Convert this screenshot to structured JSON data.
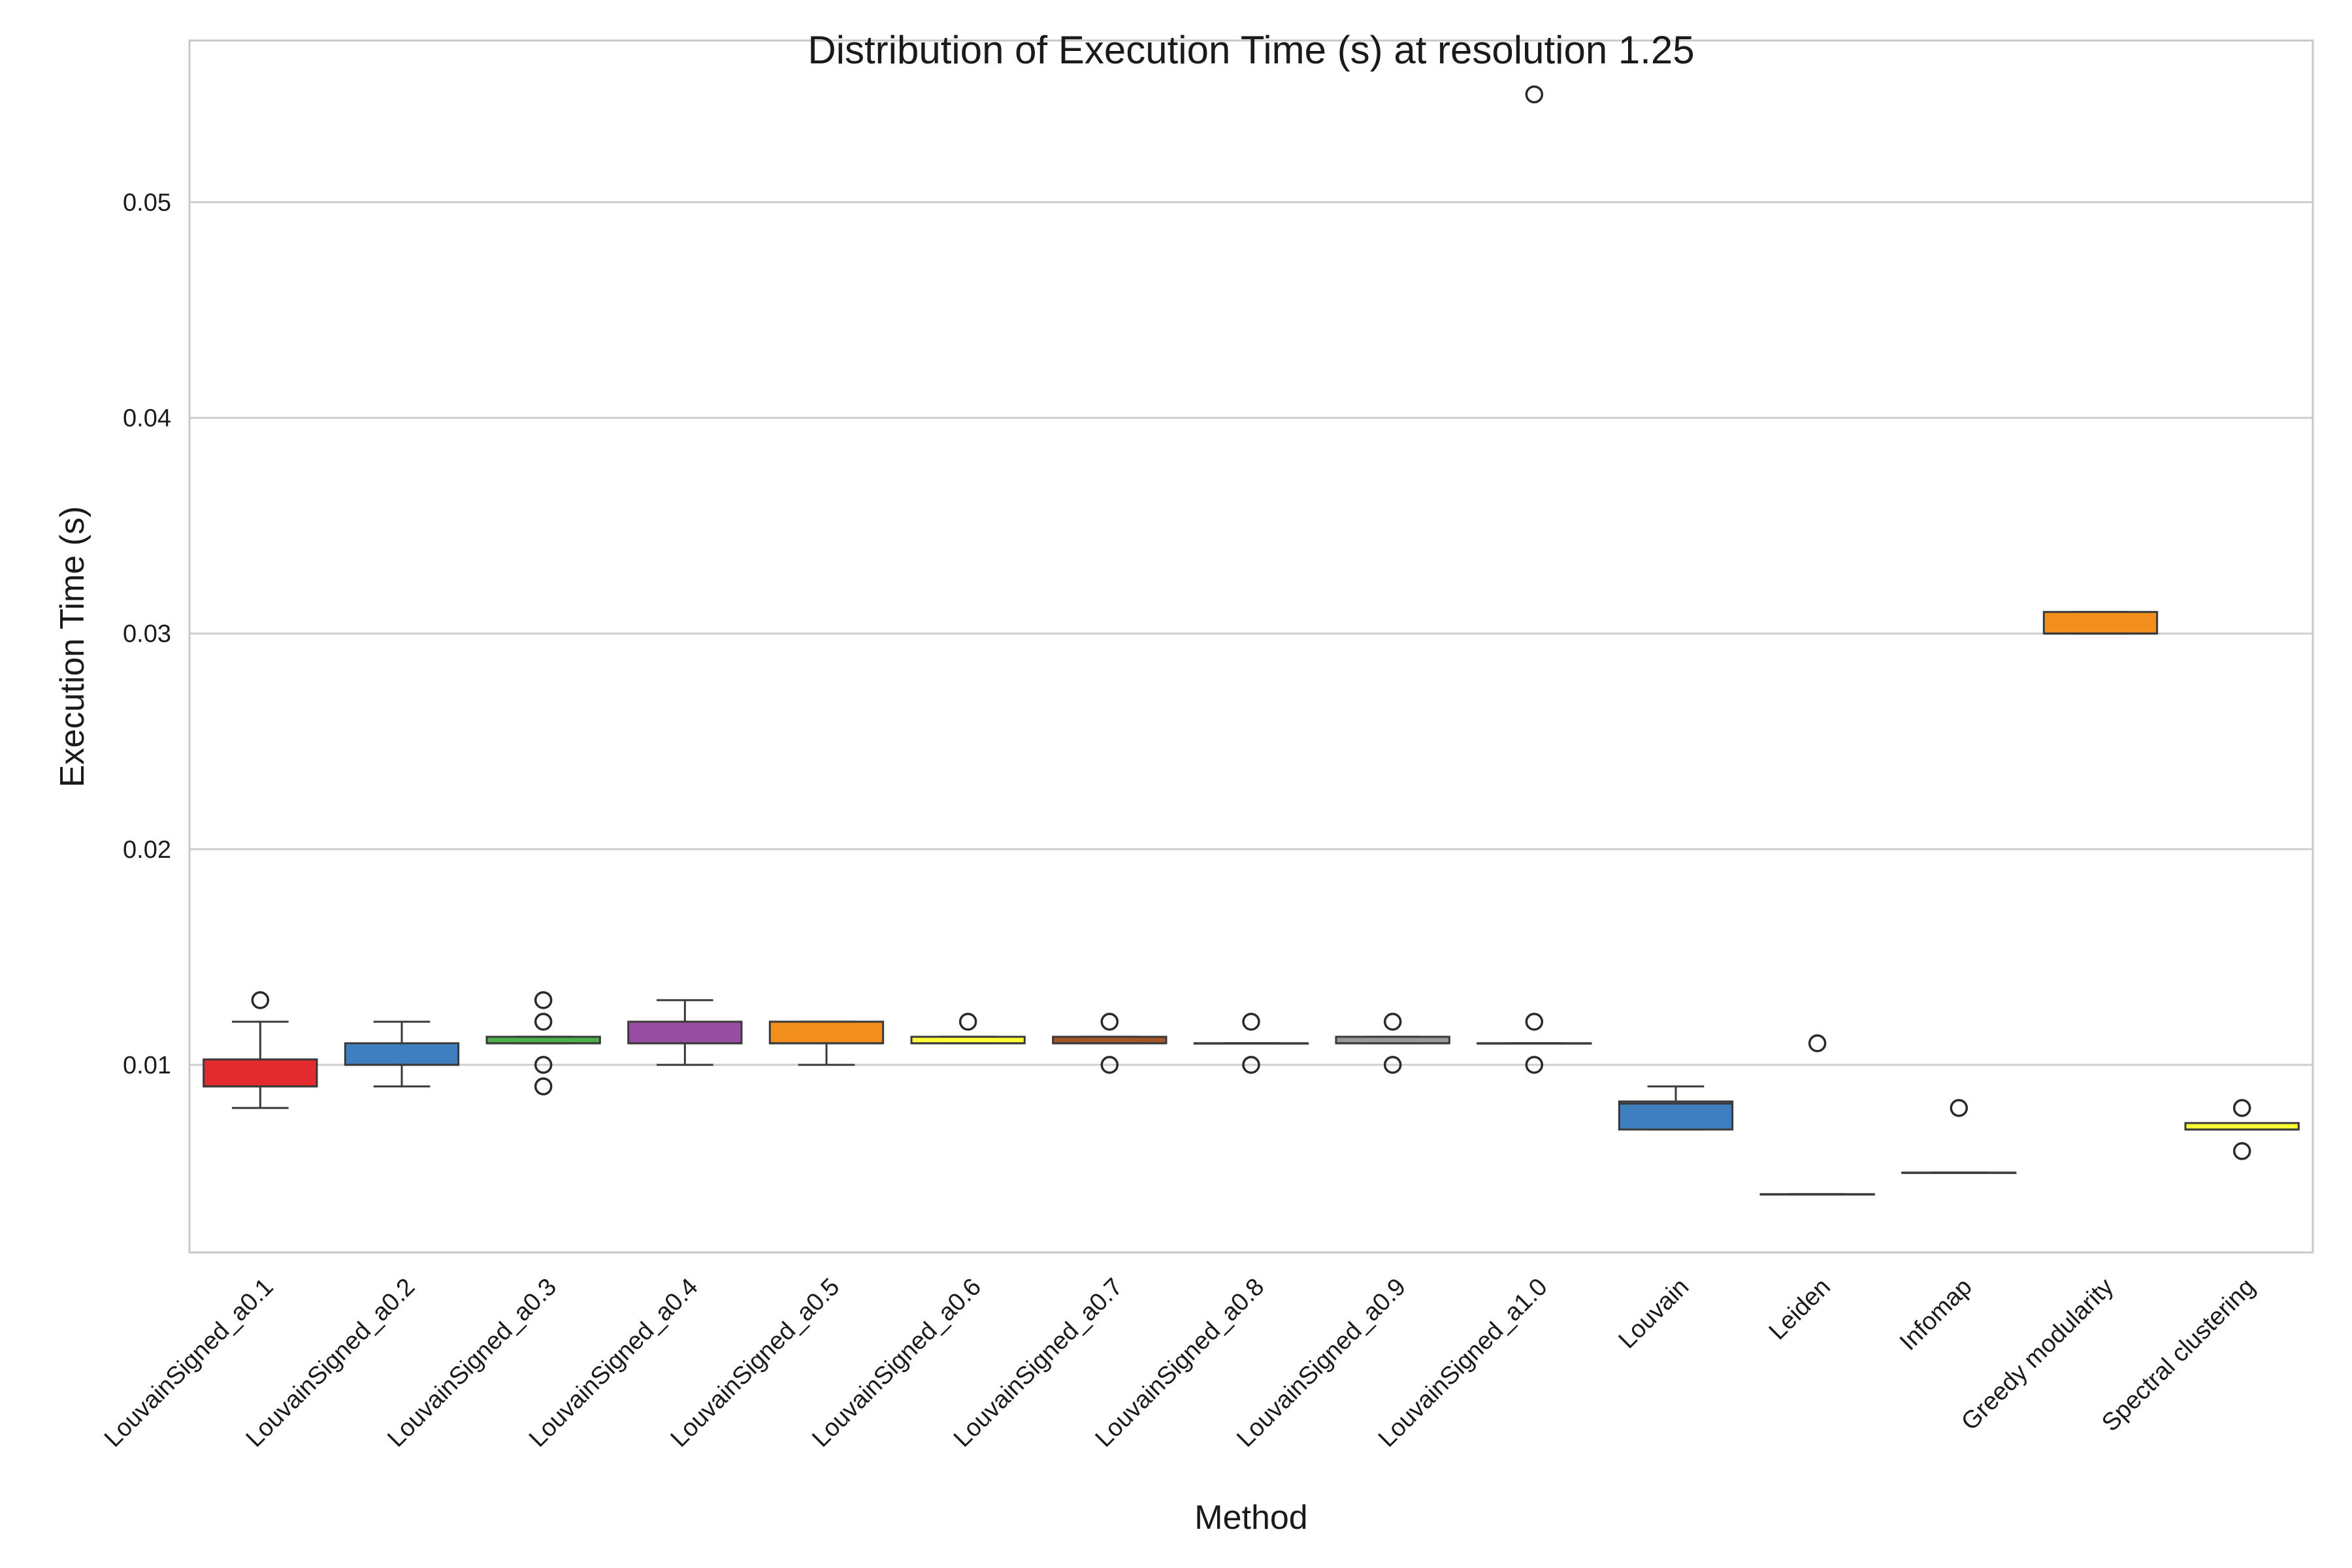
{
  "chart_data": {
    "type": "box",
    "title": "Distribution of Execution Time (s) at resolution 1.25",
    "xlabel": "Method",
    "ylabel": "Execution Time (s)",
    "ylim": [
      0.0013,
      0.0575
    ],
    "yticks": [
      0.01,
      0.02,
      0.03,
      0.04,
      0.05
    ],
    "ytick_labels": [
      "0.01",
      "0.02",
      "0.03",
      "0.04",
      "0.05"
    ],
    "grid": "horizontal",
    "categories": [
      "LouvainSigned_a0.1",
      "LouvainSigned_a0.2",
      "LouvainSigned_a0.3",
      "LouvainSigned_a0.4",
      "LouvainSigned_a0.5",
      "LouvainSigned_a0.6",
      "LouvainSigned_a0.7",
      "LouvainSigned_a0.8",
      "LouvainSigned_a0.9",
      "LouvainSigned_a1.0",
      "Louvain",
      "Leiden",
      "Infomap",
      "Greedy modularity",
      "Spectral clustering"
    ],
    "boxes": [
      {
        "whisker_low": 0.008,
        "q1": 0.009,
        "median": 0.009,
        "q3": 0.01025,
        "whisker_high": 0.012,
        "outliers": [
          0.013
        ],
        "color": "#e32a2e"
      },
      {
        "whisker_low": 0.009,
        "q1": 0.01,
        "median": 0.01,
        "q3": 0.011,
        "whisker_high": 0.012,
        "outliers": [],
        "color": "#3f7fbf"
      },
      {
        "whisker_low": 0.011,
        "q1": 0.011,
        "median": 0.011,
        "q3": 0.0113,
        "whisker_high": 0.0113,
        "outliers": [
          0.013,
          0.012,
          0.01,
          0.009
        ],
        "color": "#4daf4a"
      },
      {
        "whisker_low": 0.01,
        "q1": 0.011,
        "median": 0.011,
        "q3": 0.012,
        "whisker_high": 0.013,
        "outliers": [],
        "color": "#984ea3"
      },
      {
        "whisker_low": 0.01,
        "q1": 0.011,
        "median": 0.011,
        "q3": 0.012,
        "whisker_high": 0.012,
        "outliers": [],
        "color": "#f28e1c"
      },
      {
        "whisker_low": 0.011,
        "q1": 0.011,
        "median": 0.011,
        "q3": 0.0113,
        "whisker_high": 0.0113,
        "outliers": [
          0.012
        ],
        "color": "#ffff33"
      },
      {
        "whisker_low": 0.011,
        "q1": 0.011,
        "median": 0.011,
        "q3": 0.0113,
        "whisker_high": 0.0113,
        "outliers": [
          0.012,
          0.01
        ],
        "color": "#a65628"
      },
      {
        "whisker_low": 0.011,
        "q1": 0.011,
        "median": 0.011,
        "q3": 0.011,
        "whisker_high": 0.011,
        "outliers": [
          0.012,
          0.01
        ],
        "color": "#f781bf"
      },
      {
        "whisker_low": 0.011,
        "q1": 0.011,
        "median": 0.011,
        "q3": 0.0113,
        "whisker_high": 0.0113,
        "outliers": [
          0.012,
          0.01
        ],
        "color": "#999999"
      },
      {
        "whisker_low": 0.011,
        "q1": 0.011,
        "median": 0.011,
        "q3": 0.011,
        "whisker_high": 0.011,
        "outliers": [
          0.055,
          0.012,
          0.01
        ],
        "color": "#e32a2e"
      },
      {
        "whisker_low": 0.007,
        "q1": 0.007,
        "median": 0.0082,
        "q3": 0.0083,
        "whisker_high": 0.009,
        "outliers": [],
        "color": "#3f7fbf"
      },
      {
        "whisker_low": 0.004,
        "q1": 0.004,
        "median": 0.004,
        "q3": 0.004,
        "whisker_high": 0.004,
        "outliers": [
          0.011
        ],
        "color": "#4daf4a"
      },
      {
        "whisker_low": 0.005,
        "q1": 0.005,
        "median": 0.005,
        "q3": 0.005,
        "whisker_high": 0.005,
        "outliers": [
          0.008
        ],
        "color": "#984ea3"
      },
      {
        "whisker_low": 0.03,
        "q1": 0.03,
        "median": 0.03,
        "q3": 0.031,
        "whisker_high": 0.031,
        "outliers": [],
        "color": "#f28e1c"
      },
      {
        "whisker_low": 0.007,
        "q1": 0.007,
        "median": 0.007,
        "q3": 0.0073,
        "whisker_high": 0.0073,
        "outliers": [
          0.008,
          0.006
        ],
        "color": "#ffff33"
      }
    ]
  }
}
